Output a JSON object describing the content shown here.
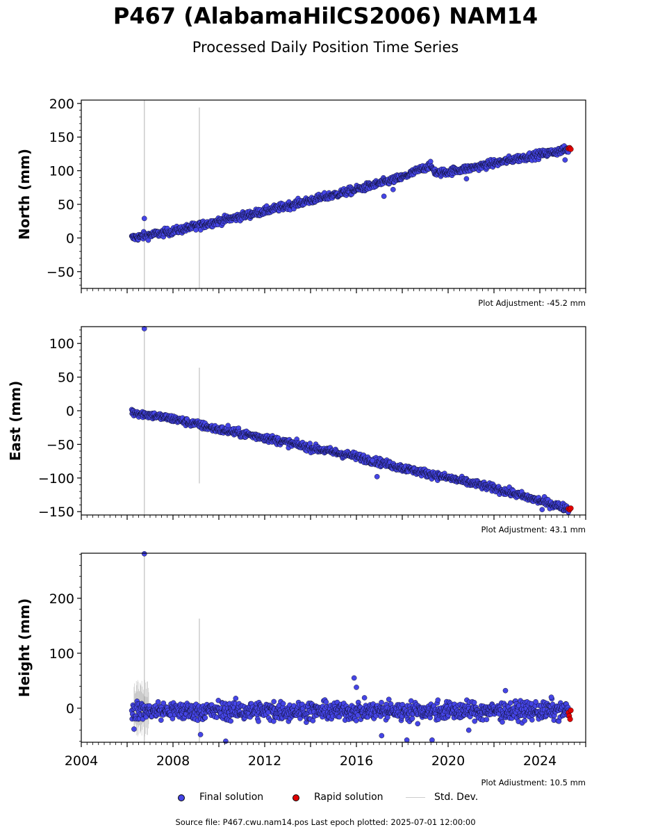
{
  "title": "P467 (AlabamaHilCS2006) NAM14",
  "subtitle": "Processed Daily Position Time Series",
  "colors": {
    "final": "#4545e6",
    "rapid": "#e00000",
    "std_dev": "#cccccc",
    "edge": "#000000"
  },
  "legend": {
    "final": "Final solution",
    "rapid": "Rapid solution",
    "std": "Std. Dev."
  },
  "source_line": "Source file: P467.cwu.nam14.pos  Last epoch plotted: 2025-07-01 12:00:00",
  "chart_data": [
    {
      "type": "scatter",
      "ylabel": "North (mm)",
      "adjustment": "Plot Adjustment: -45.2 mm",
      "xlim": [
        2004.0,
        2026.0
      ],
      "ylim": [
        -75,
        205
      ],
      "yticks": [
        -50,
        0,
        50,
        100,
        150,
        200
      ],
      "yminor_step": 10,
      "xtick_labels_shown": false,
      "final_trend": [
        {
          "x": 2006.2,
          "y": 0
        },
        {
          "x": 2008.0,
          "y": 10
        },
        {
          "x": 2010.0,
          "y": 25
        },
        {
          "x": 2012.0,
          "y": 40
        },
        {
          "x": 2014.0,
          "y": 56
        },
        {
          "x": 2016.0,
          "y": 72
        },
        {
          "x": 2018.0,
          "y": 90
        },
        {
          "x": 2019.2,
          "y": 108
        },
        {
          "x": 2019.5,
          "y": 96
        },
        {
          "x": 2021.0,
          "y": 104
        },
        {
          "x": 2023.0,
          "y": 118
        },
        {
          "x": 2025.3,
          "y": 132
        }
      ],
      "scatter_spread": 4,
      "outliers": [
        {
          "x": 2006.75,
          "y": 29
        },
        {
          "x": 2009.0,
          "y": 12
        },
        {
          "x": 2017.2,
          "y": 62
        },
        {
          "x": 2017.6,
          "y": 72
        },
        {
          "x": 2020.8,
          "y": 88
        },
        {
          "x": 2025.1,
          "y": 116
        }
      ],
      "rapid": [
        {
          "x": 2025.25,
          "y": 133
        },
        {
          "x": 2025.3,
          "y": 134
        },
        {
          "x": 2025.35,
          "y": 132
        }
      ],
      "error_bars": [
        {
          "x": 2006.75,
          "low": -75,
          "high": 205
        },
        {
          "x": 2009.15,
          "low": -75,
          "high": 194
        }
      ]
    },
    {
      "type": "scatter",
      "ylabel": "East (mm)",
      "adjustment": "Plot Adjustment: 43.1 mm",
      "xlim": [
        2004.0,
        2026.0
      ],
      "ylim": [
        -155,
        125
      ],
      "yticks": [
        -150,
        -100,
        -50,
        0,
        50,
        100
      ],
      "yminor_step": 10,
      "xtick_labels_shown": false,
      "final_trend": [
        {
          "x": 2006.2,
          "y": -2
        },
        {
          "x": 2008.0,
          "y": -12
        },
        {
          "x": 2010.0,
          "y": -28
        },
        {
          "x": 2012.0,
          "y": -40
        },
        {
          "x": 2014.0,
          "y": -55
        },
        {
          "x": 2016.0,
          "y": -68
        },
        {
          "x": 2018.0,
          "y": -85
        },
        {
          "x": 2020.0,
          "y": -100
        },
        {
          "x": 2022.0,
          "y": -115
        },
        {
          "x": 2024.0,
          "y": -134
        },
        {
          "x": 2025.3,
          "y": -146
        }
      ],
      "scatter_spread": 4,
      "outliers": [
        {
          "x": 2006.75,
          "y": 122
        },
        {
          "x": 2010.4,
          "y": -22
        },
        {
          "x": 2016.7,
          "y": -74
        },
        {
          "x": 2016.9,
          "y": -98
        },
        {
          "x": 2024.1,
          "y": -147
        }
      ],
      "rapid": [
        {
          "x": 2025.25,
          "y": -146
        },
        {
          "x": 2025.3,
          "y": -147
        },
        {
          "x": 2025.35,
          "y": -145
        }
      ],
      "error_bars": [
        {
          "x": 2006.75,
          "low": -155,
          "high": 125
        },
        {
          "x": 2009.15,
          "low": -108,
          "high": 64
        }
      ]
    },
    {
      "type": "scatter",
      "ylabel": "Height (mm)",
      "adjustment": "Plot Adjustment: 10.5 mm",
      "xlim": [
        2004.0,
        2026.0
      ],
      "ylim": [
        -62,
        282
      ],
      "yticks": [
        0,
        100,
        200
      ],
      "yminor_step": 20,
      "xticks": [
        "2004",
        "2008",
        "2012",
        "2016",
        "2020",
        "2024"
      ],
      "xtick_values": [
        2004,
        2008,
        2012,
        2016,
        2020,
        2024
      ],
      "xtick_labels_shown": true,
      "final_trend": [
        {
          "x": 2006.2,
          "y": -5
        },
        {
          "x": 2010.0,
          "y": -5
        },
        {
          "x": 2015.0,
          "y": -5
        },
        {
          "x": 2020.0,
          "y": -5
        },
        {
          "x": 2025.3,
          "y": -5
        }
      ],
      "scatter_spread": 12,
      "outliers": [
        {
          "x": 2006.75,
          "y": 281
        },
        {
          "x": 2006.3,
          "y": -38
        },
        {
          "x": 2009.2,
          "y": -48
        },
        {
          "x": 2010.3,
          "y": -60
        },
        {
          "x": 2012.4,
          "y": 12
        },
        {
          "x": 2015.9,
          "y": 55
        },
        {
          "x": 2016.0,
          "y": 38
        },
        {
          "x": 2017.1,
          "y": -50
        },
        {
          "x": 2018.2,
          "y": -58
        },
        {
          "x": 2019.3,
          "y": -58
        },
        {
          "x": 2020.9,
          "y": -40
        },
        {
          "x": 2022.5,
          "y": 32
        },
        {
          "x": 2024.5,
          "y": 20
        }
      ],
      "rapid": [
        {
          "x": 2025.25,
          "y": -8
        },
        {
          "x": 2025.28,
          "y": -14
        },
        {
          "x": 2025.32,
          "y": -20
        },
        {
          "x": 2025.35,
          "y": -4
        }
      ],
      "error_bars": [
        {
          "x": 2006.75,
          "low": -62,
          "high": 282
        },
        {
          "x": 2009.15,
          "low": -62,
          "high": 163
        }
      ]
    }
  ]
}
